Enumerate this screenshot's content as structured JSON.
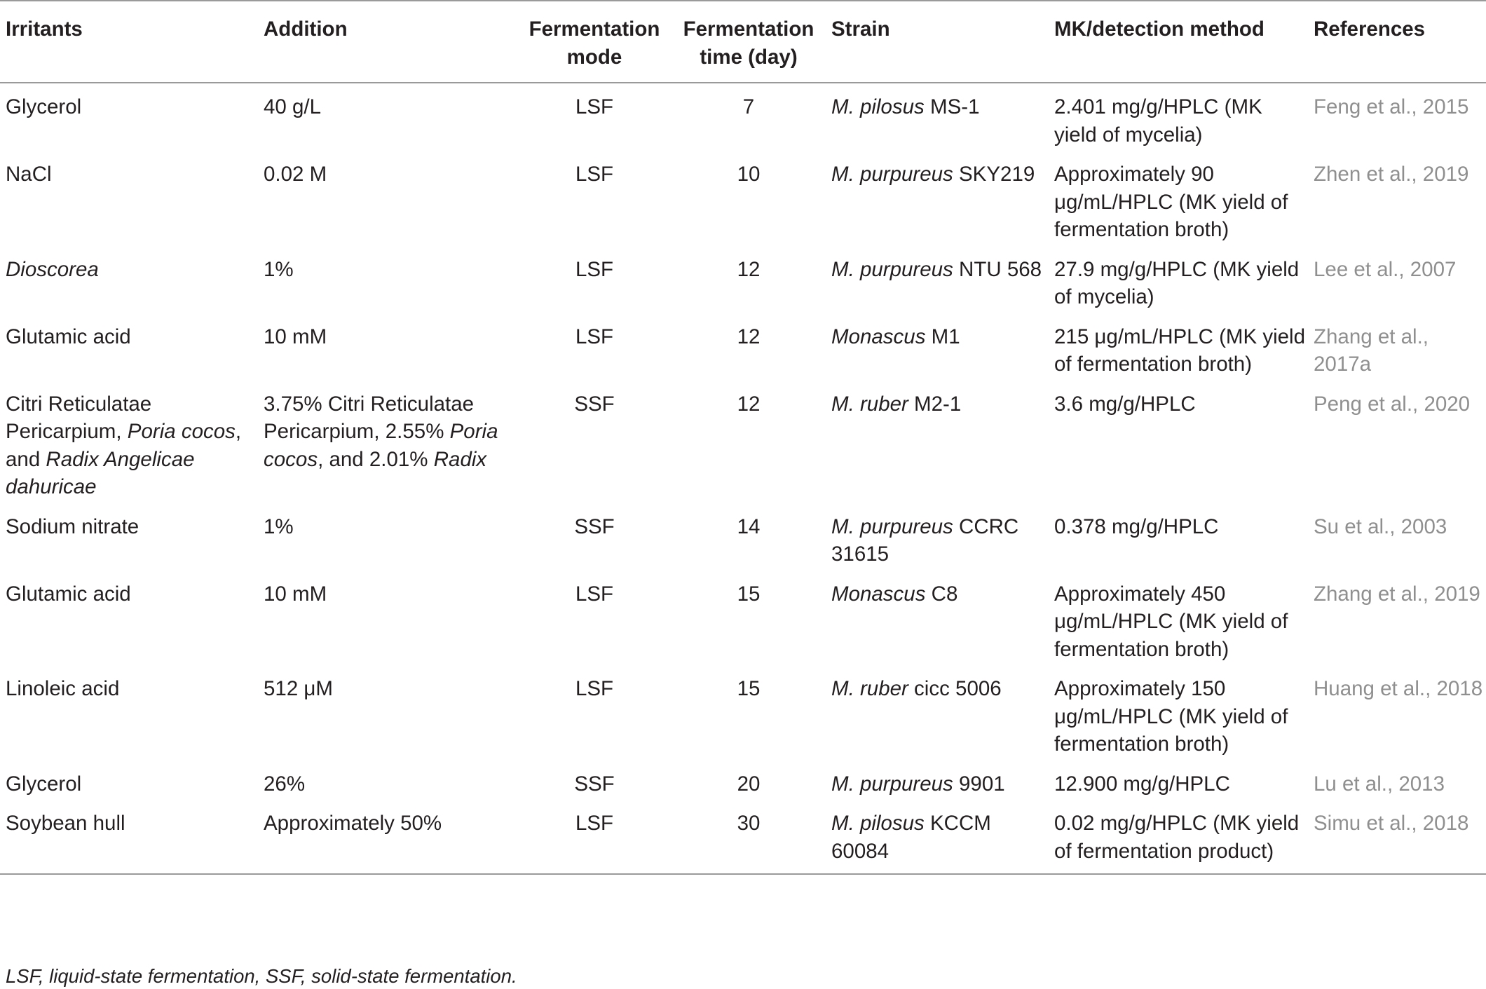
{
  "headers": [
    "Irritants",
    "Addition",
    "Fermentation mode",
    "Fermentation time (day)",
    "Strain",
    "MK/detection method",
    "References"
  ],
  "rows": [
    {
      "irritant": [
        {
          "t": "Glycerol",
          "i": false
        }
      ],
      "addition": [
        {
          "t": "40 g/L",
          "i": false
        }
      ],
      "mode": "LSF",
      "time": "7",
      "strain": [
        {
          "t": "M. pilosus",
          "i": true
        },
        {
          "t": " MS-1",
          "i": false
        }
      ],
      "mk": "2.401 mg/g/HPLC (MK yield of mycelia)",
      "ref": "Feng et al., 2015"
    },
    {
      "irritant": [
        {
          "t": "NaCl",
          "i": false
        }
      ],
      "addition": [
        {
          "t": "0.02 M",
          "i": false
        }
      ],
      "mode": "LSF",
      "time": "10",
      "strain": [
        {
          "t": "M. purpureus",
          "i": true
        },
        {
          "t": " SKY219",
          "i": false
        }
      ],
      "mk": "Approximately 90 μg/mL/HPLC (MK yield of fermentation broth)",
      "ref": "Zhen et al., 2019"
    },
    {
      "irritant": [
        {
          "t": "Dioscorea",
          "i": true
        }
      ],
      "addition": [
        {
          "t": "1%",
          "i": false
        }
      ],
      "mode": "LSF",
      "time": "12",
      "strain": [
        {
          "t": "M. purpureus",
          "i": true
        },
        {
          "t": " NTU 568",
          "i": false
        }
      ],
      "mk": "27.9 mg/g/HPLC (MK yield of mycelia)",
      "ref": "Lee et al., 2007"
    },
    {
      "irritant": [
        {
          "t": "Glutamic acid",
          "i": false
        }
      ],
      "addition": [
        {
          "t": "10 mM",
          "i": false
        }
      ],
      "mode": "LSF",
      "time": "12",
      "strain": [
        {
          "t": "Monascus",
          "i": true
        },
        {
          "t": " M1",
          "i": false
        }
      ],
      "mk": "215 μg/mL/HPLC (MK yield of fermentation broth)",
      "ref": "Zhang et al., 2017a"
    },
    {
      "irritant": [
        {
          "t": "Citri Reticulatae Pericarpium, ",
          "i": false
        },
        {
          "t": "Poria cocos",
          "i": true
        },
        {
          "t": ", and ",
          "i": false
        },
        {
          "t": "Radix Angelicae dahuricae",
          "i": true
        }
      ],
      "addition": [
        {
          "t": "3.75% Citri Reticulatae Pericarpium, 2.55% ",
          "i": false
        },
        {
          "t": "Poria cocos",
          "i": true
        },
        {
          "t": ", and 2.01% ",
          "i": false
        },
        {
          "t": "Radix",
          "i": true
        }
      ],
      "mode": "SSF",
      "time": "12",
      "strain": [
        {
          "t": "M. ruber",
          "i": true
        },
        {
          "t": " M2-1",
          "i": false
        }
      ],
      "mk": "3.6 mg/g/HPLC",
      "ref": "Peng et al., 2020"
    },
    {
      "irritant": [
        {
          "t": "Sodium nitrate",
          "i": false
        }
      ],
      "addition": [
        {
          "t": "1%",
          "i": false
        }
      ],
      "mode": "SSF",
      "time": "14",
      "strain": [
        {
          "t": "M. purpureus",
          "i": true
        },
        {
          "t": " CCRC 31615",
          "i": false
        }
      ],
      "mk": "0.378 mg/g/HPLC",
      "ref": "Su et al., 2003"
    },
    {
      "irritant": [
        {
          "t": "Glutamic acid",
          "i": false
        }
      ],
      "addition": [
        {
          "t": "10 mM",
          "i": false
        }
      ],
      "mode": "LSF",
      "time": "15",
      "strain": [
        {
          "t": "Monascus",
          "i": true
        },
        {
          "t": " C8",
          "i": false
        }
      ],
      "mk": "Approximately 450 μg/mL/HPLC (MK yield of fermentation broth)",
      "ref": "Zhang et al., 2019"
    },
    {
      "irritant": [
        {
          "t": "Linoleic acid",
          "i": false
        }
      ],
      "addition": [
        {
          "t": "512 μM",
          "i": false
        }
      ],
      "mode": "LSF",
      "time": "15",
      "strain": [
        {
          "t": "M. ruber",
          "i": true
        },
        {
          "t": " cicc 5006",
          "i": false
        }
      ],
      "mk": "Approximately 150 μg/mL/HPLC (MK yield of fermentation broth)",
      "ref": "Huang et al., 2018"
    },
    {
      "irritant": [
        {
          "t": "Glycerol",
          "i": false
        }
      ],
      "addition": [
        {
          "t": "26%",
          "i": false
        }
      ],
      "mode": "SSF",
      "time": "20",
      "strain": [
        {
          "t": "M. purpureus",
          "i": true
        },
        {
          "t": " 9901",
          "i": false
        }
      ],
      "mk": "12.900 mg/g/HPLC",
      "ref": "Lu et al., 2013"
    },
    {
      "irritant": [
        {
          "t": "Soybean hull",
          "i": false
        }
      ],
      "addition": [
        {
          "t": "Approximately 50%",
          "i": false
        }
      ],
      "mode": "LSF",
      "time": "30",
      "strain": [
        {
          "t": "M. pilosus",
          "i": true
        },
        {
          "t": " KCCM 60084",
          "i": false
        }
      ],
      "mk": "0.02 mg/g/HPLC (MK yield of fermentation product)",
      "ref": "Simu et al., 2018"
    }
  ],
  "footnote": "LSF, liquid-state fermentation, SSF, solid-state fermentation."
}
